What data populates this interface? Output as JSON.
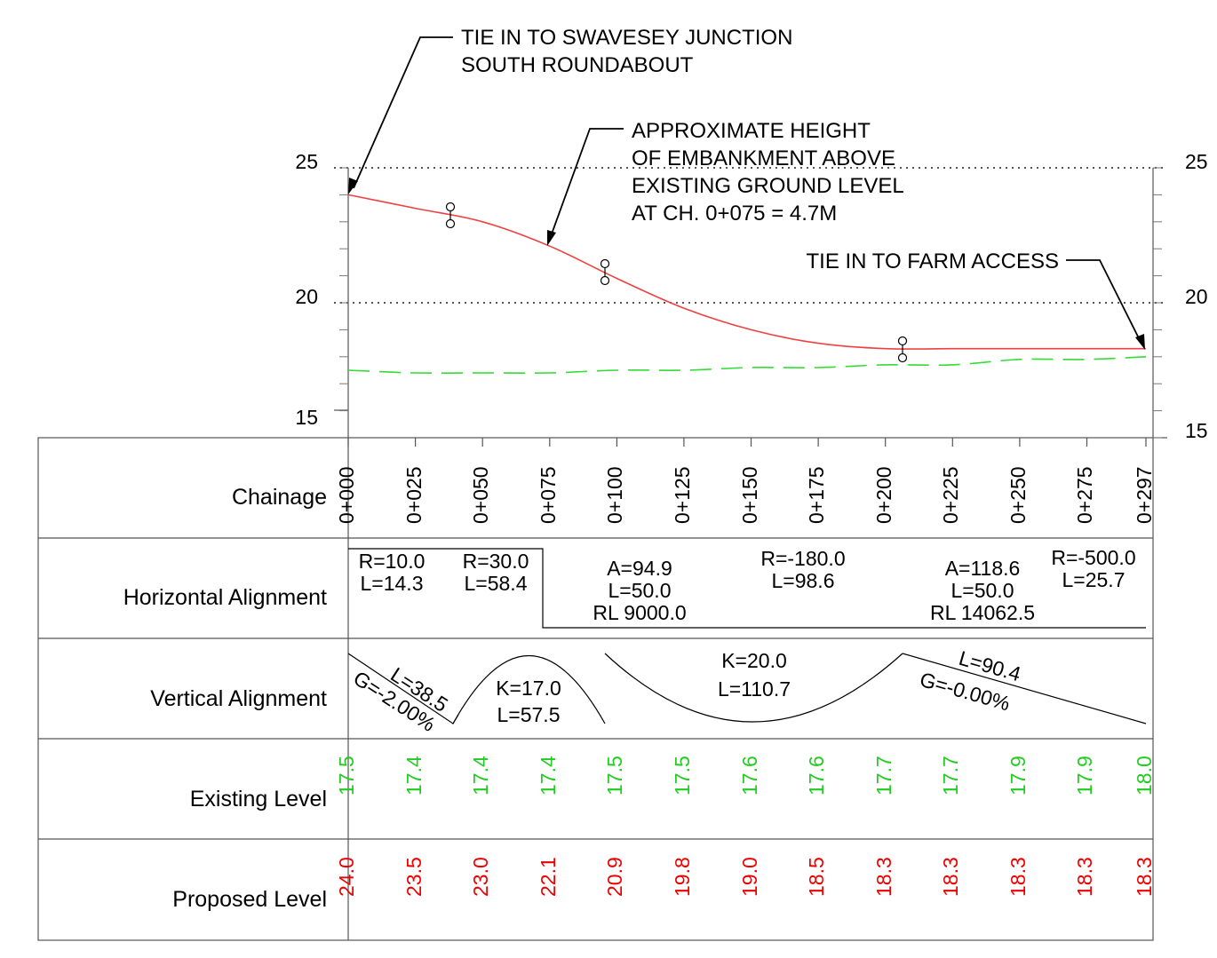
{
  "profile": {
    "y_axis_left_ticks": [
      "25",
      "20",
      "15"
    ],
    "y_axis_right_ticks": [
      "25",
      "20",
      "15"
    ],
    "y_range": [
      15,
      25
    ],
    "proposed_profile": [
      [
        0,
        24.0
      ],
      [
        25,
        23.5
      ],
      [
        50,
        23.0
      ],
      [
        75,
        22.1
      ],
      [
        100,
        20.9
      ],
      [
        125,
        19.8
      ],
      [
        150,
        19.0
      ],
      [
        175,
        18.5
      ],
      [
        200,
        18.3
      ],
      [
        225,
        18.3
      ],
      [
        250,
        18.3
      ],
      [
        275,
        18.3
      ],
      [
        297,
        18.3
      ]
    ],
    "existing_ground": [
      [
        0,
        17.5
      ],
      [
        25,
        17.4
      ],
      [
        50,
        17.4
      ],
      [
        75,
        17.4
      ],
      [
        100,
        17.5
      ],
      [
        125,
        17.5
      ],
      [
        150,
        17.6
      ],
      [
        175,
        17.6
      ],
      [
        200,
        17.7
      ],
      [
        225,
        17.7
      ],
      [
        250,
        17.9
      ],
      [
        275,
        17.9
      ],
      [
        297,
        18.0
      ]
    ],
    "proposed_color": "#f04040",
    "existing_color": "#33dd33",
    "annotations": {
      "tie_in_start": [
        "TIE IN TO SWAVESEY JUNCTION",
        "SOUTH ROUNDABOUT"
      ],
      "embankment": [
        "APPROXIMATE HEIGHT",
        "OF EMBANKMENT ABOVE",
        "EXISTING GROUND LEVEL",
        "AT CH. 0+075 = 4.7M"
      ],
      "tie_in_end": "TIE IN TO FARM ACCESS"
    }
  },
  "table": {
    "row_labels": {
      "chainage": "Chainage",
      "horizontal": "Horizontal Alignment",
      "vertical": "Vertical Alignment",
      "existing": "Existing Level",
      "proposed": "Proposed Level"
    },
    "chainages": [
      "0+000",
      "0+025",
      "0+050",
      "0+075",
      "0+100",
      "0+125",
      "0+150",
      "0+175",
      "0+200",
      "0+225",
      "0+250",
      "0+275",
      "0+297"
    ],
    "existing_levels": [
      "17.5",
      "17.4",
      "17.4",
      "17.4",
      "17.5",
      "17.5",
      "17.6",
      "17.6",
      "17.7",
      "17.7",
      "17.9",
      "17.9",
      "18.0"
    ],
    "proposed_levels": [
      "24.0",
      "23.5",
      "23.0",
      "22.1",
      "20.9",
      "19.8",
      "19.0",
      "18.5",
      "18.3",
      "18.3",
      "18.3",
      "18.3",
      "18.3"
    ],
    "existing_color": "#22cc22",
    "proposed_color": "#ee0000",
    "horizontal_alignment": {
      "h1": [
        "R=10.0",
        "L=14.3"
      ],
      "h2": [
        "R=30.0",
        "L=58.4"
      ],
      "h3": [
        "A=94.9",
        "L=50.0",
        "RL 9000.0"
      ],
      "h4": [
        "R=-180.0",
        "L=98.6"
      ],
      "h5": [
        "A=118.6",
        "L=50.0",
        "RL 14062.5"
      ],
      "h6": [
        "R=-500.0",
        "L=25.7"
      ]
    },
    "vertical_alignment": {
      "v1": [
        "L=38.5",
        "G=-2.00%"
      ],
      "v2": [
        "K=17.0",
        "L=57.5"
      ],
      "v3": [
        "K=20.0",
        "L=110.7"
      ],
      "v4": [
        "L=90.4",
        "G=-0.00%"
      ]
    }
  }
}
